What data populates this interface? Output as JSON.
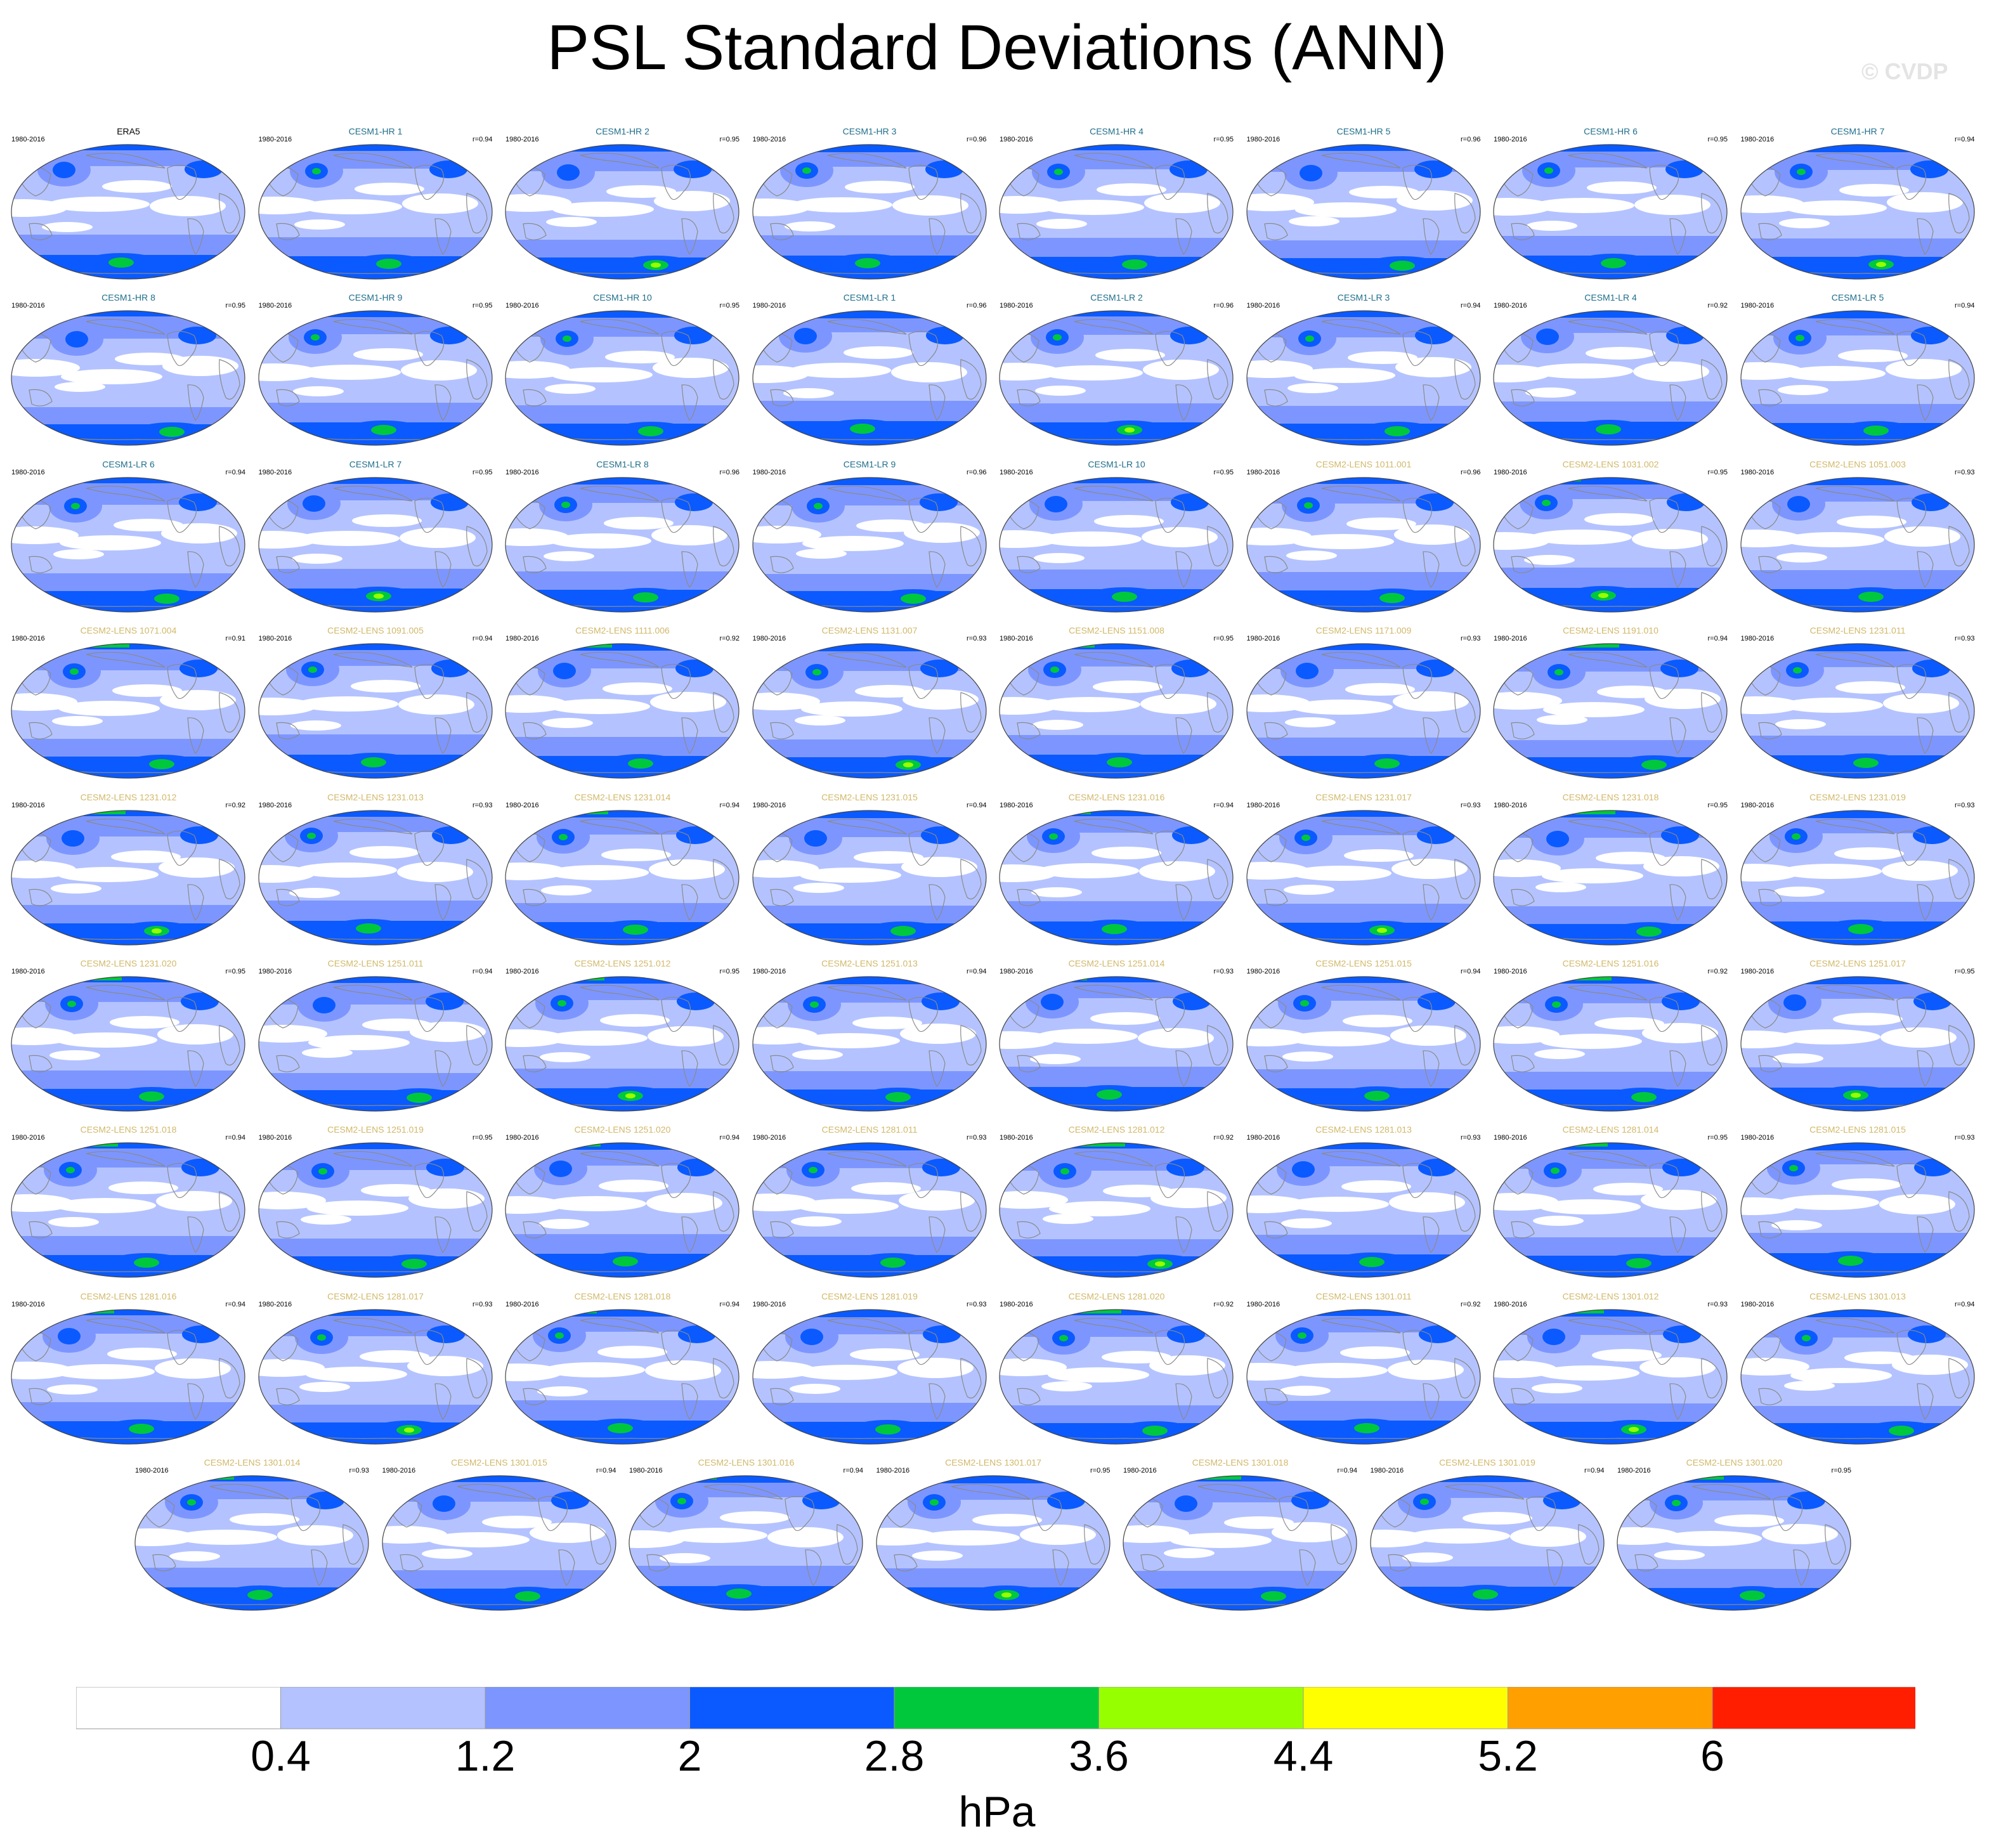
{
  "chart_data": {
    "type": "heatmap",
    "title": "PSL Standard Deviations (ANN)",
    "watermark": "© CVDP",
    "period": "1980-2016",
    "panel_colors": {
      "ERA5": "#000000",
      "CESM1": "#1f6e8c",
      "CESM2": "#d2b86a"
    },
    "panels": [
      {
        "name": "ERA5",
        "r": ""
      },
      {
        "name": "CESM1-HR 1",
        "r": "r=0.94"
      },
      {
        "name": "CESM1-HR 2",
        "r": "r=0.95"
      },
      {
        "name": "CESM1-HR 3",
        "r": "r=0.96"
      },
      {
        "name": "CESM1-HR 4",
        "r": "r=0.95"
      },
      {
        "name": "CESM1-HR 5",
        "r": "r=0.96"
      },
      {
        "name": "CESM1-HR 6",
        "r": "r=0.95"
      },
      {
        "name": "CESM1-HR 7",
        "r": "r=0.94"
      },
      {
        "name": "CESM1-HR 8",
        "r": "r=0.95"
      },
      {
        "name": "CESM1-HR 9",
        "r": "r=0.95"
      },
      {
        "name": "CESM1-HR 10",
        "r": "r=0.95"
      },
      {
        "name": "CESM1-LR 1",
        "r": "r=0.96"
      },
      {
        "name": "CESM1-LR 2",
        "r": "r=0.96"
      },
      {
        "name": "CESM1-LR 3",
        "r": "r=0.94"
      },
      {
        "name": "CESM1-LR 4",
        "r": "r=0.92"
      },
      {
        "name": "CESM1-LR 5",
        "r": "r=0.94"
      },
      {
        "name": "CESM1-LR 6",
        "r": "r=0.94"
      },
      {
        "name": "CESM1-LR 7",
        "r": "r=0.95"
      },
      {
        "name": "CESM1-LR 8",
        "r": "r=0.96"
      },
      {
        "name": "CESM1-LR 9",
        "r": "r=0.96"
      },
      {
        "name": "CESM1-LR 10",
        "r": "r=0.95"
      },
      {
        "name": "CESM2-LENS 1011.001",
        "r": "r=0.96"
      },
      {
        "name": "CESM2-LENS 1031.002",
        "r": "r=0.95"
      },
      {
        "name": "CESM2-LENS 1051.003",
        "r": "r=0.93"
      },
      {
        "name": "CESM2-LENS 1071.004",
        "r": "r=0.91"
      },
      {
        "name": "CESM2-LENS 1091.005",
        "r": "r=0.94"
      },
      {
        "name": "CESM2-LENS 1111.006",
        "r": "r=0.92"
      },
      {
        "name": "CESM2-LENS 1131.007",
        "r": "r=0.93"
      },
      {
        "name": "CESM2-LENS 1151.008",
        "r": "r=0.95"
      },
      {
        "name": "CESM2-LENS 1171.009",
        "r": "r=0.93"
      },
      {
        "name": "CESM2-LENS 1191.010",
        "r": "r=0.94"
      },
      {
        "name": "CESM2-LENS 1231.011",
        "r": "r=0.93"
      },
      {
        "name": "CESM2-LENS 1231.012",
        "r": "r=0.92"
      },
      {
        "name": "CESM2-LENS 1231.013",
        "r": "r=0.93"
      },
      {
        "name": "CESM2-LENS 1231.014",
        "r": "r=0.94"
      },
      {
        "name": "CESM2-LENS 1231.015",
        "r": "r=0.94"
      },
      {
        "name": "CESM2-LENS 1231.016",
        "r": "r=0.94"
      },
      {
        "name": "CESM2-LENS 1231.017",
        "r": "r=0.93"
      },
      {
        "name": "CESM2-LENS 1231.018",
        "r": "r=0.95"
      },
      {
        "name": "CESM2-LENS 1231.019",
        "r": "r=0.93"
      },
      {
        "name": "CESM2-LENS 1231.020",
        "r": "r=0.95"
      },
      {
        "name": "CESM2-LENS 1251.011",
        "r": "r=0.94"
      },
      {
        "name": "CESM2-LENS 1251.012",
        "r": "r=0.95"
      },
      {
        "name": "CESM2-LENS 1251.013",
        "r": "r=0.94"
      },
      {
        "name": "CESM2-LENS 1251.014",
        "r": "r=0.93"
      },
      {
        "name": "CESM2-LENS 1251.015",
        "r": "r=0.94"
      },
      {
        "name": "CESM2-LENS 1251.016",
        "r": "r=0.92"
      },
      {
        "name": "CESM2-LENS 1251.017",
        "r": "r=0.95"
      },
      {
        "name": "CESM2-LENS 1251.018",
        "r": "r=0.94"
      },
      {
        "name": "CESM2-LENS 1251.019",
        "r": "r=0.95"
      },
      {
        "name": "CESM2-LENS 1251.020",
        "r": "r=0.94"
      },
      {
        "name": "CESM2-LENS 1281.011",
        "r": "r=0.93"
      },
      {
        "name": "CESM2-LENS 1281.012",
        "r": "r=0.92"
      },
      {
        "name": "CESM2-LENS 1281.013",
        "r": "r=0.93"
      },
      {
        "name": "CESM2-LENS 1281.014",
        "r": "r=0.95"
      },
      {
        "name": "CESM2-LENS 1281.015",
        "r": "r=0.93"
      },
      {
        "name": "CESM2-LENS 1281.016",
        "r": "r=0.94"
      },
      {
        "name": "CESM2-LENS 1281.017",
        "r": "r=0.93"
      },
      {
        "name": "CESM2-LENS 1281.018",
        "r": "r=0.94"
      },
      {
        "name": "CESM2-LENS 1281.019",
        "r": "r=0.93"
      },
      {
        "name": "CESM2-LENS 1281.020",
        "r": "r=0.92"
      },
      {
        "name": "CESM2-LENS 1301.011",
        "r": "r=0.92"
      },
      {
        "name": "CESM2-LENS 1301.012",
        "r": "r=0.93"
      },
      {
        "name": "CESM2-LENS 1301.013",
        "r": "r=0.94"
      },
      {
        "name": "CESM2-LENS 1301.014",
        "r": "r=0.93"
      },
      {
        "name": "CESM2-LENS 1301.015",
        "r": "r=0.94"
      },
      {
        "name": "CESM2-LENS 1301.016",
        "r": "r=0.94"
      },
      {
        "name": "CESM2-LENS 1301.017",
        "r": "r=0.95"
      },
      {
        "name": "CESM2-LENS 1301.018",
        "r": "r=0.94"
      },
      {
        "name": "CESM2-LENS 1301.019",
        "r": "r=0.94"
      },
      {
        "name": "CESM2-LENS 1301.020",
        "r": "r=0.95"
      }
    ],
    "colorbar": {
      "unit": "hPa",
      "levels": [
        "0.4",
        "1.2",
        "2",
        "2.8",
        "3.6",
        "4.4",
        "5.2",
        "6"
      ],
      "colors": [
        "#ffffff",
        "#b4c3ff",
        "#7d96ff",
        "#0a5aff",
        "#00c83c",
        "#96ff00",
        "#ffff00",
        "#ffa000",
        "#ff1e00"
      ]
    }
  }
}
